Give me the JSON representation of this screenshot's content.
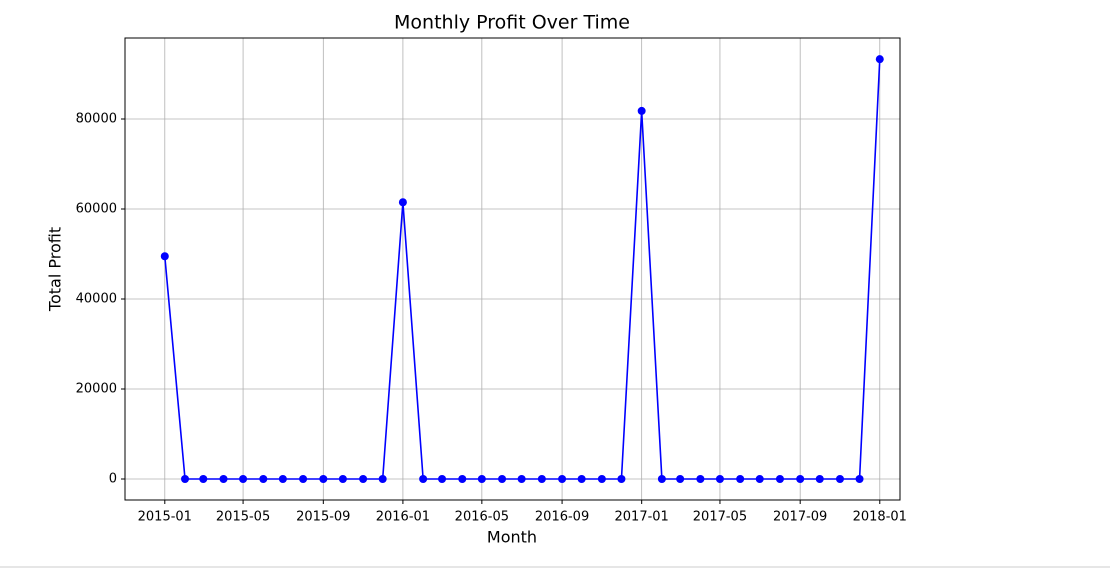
{
  "chart_data": {
    "type": "line",
    "title": "Monthly Profit Over Time",
    "x_label": "Month",
    "y_label": "Total Profit",
    "x": [
      "2015-01",
      "2015-02",
      "2015-03",
      "2015-04",
      "2015-05",
      "2015-06",
      "2015-07",
      "2015-08",
      "2015-09",
      "2015-10",
      "2015-11",
      "2015-12",
      "2016-01",
      "2016-02",
      "2016-03",
      "2016-04",
      "2016-05",
      "2016-06",
      "2016-07",
      "2016-08",
      "2016-09",
      "2016-10",
      "2016-11",
      "2016-12",
      "2017-01",
      "2017-02",
      "2017-03",
      "2017-04",
      "2017-05",
      "2017-06",
      "2017-07",
      "2017-08",
      "2017-09",
      "2017-10",
      "2017-11",
      "2017-12",
      "2018-01"
    ],
    "series": [
      {
        "name": "Total Profit",
        "color": "#0000ff",
        "values": [
          49500,
          0,
          0,
          0,
          0,
          0,
          0,
          0,
          0,
          0,
          0,
          0,
          61500,
          0,
          0,
          0,
          0,
          0,
          0,
          0,
          0,
          0,
          0,
          0,
          81800,
          0,
          0,
          0,
          0,
          0,
          0,
          0,
          0,
          0,
          0,
          0,
          93300
        ]
      }
    ],
    "xlim": [
      "2014-11",
      "2018-02"
    ],
    "xticks": [
      "2015-01",
      "2015-05",
      "2015-09",
      "2016-01",
      "2016-05",
      "2016-09",
      "2017-01",
      "2017-05",
      "2017-09",
      "2018-01"
    ],
    "ylim": [
      -4667,
      98000
    ],
    "yticks": [
      0,
      20000,
      40000,
      60000,
      80000
    ],
    "grid": true
  }
}
